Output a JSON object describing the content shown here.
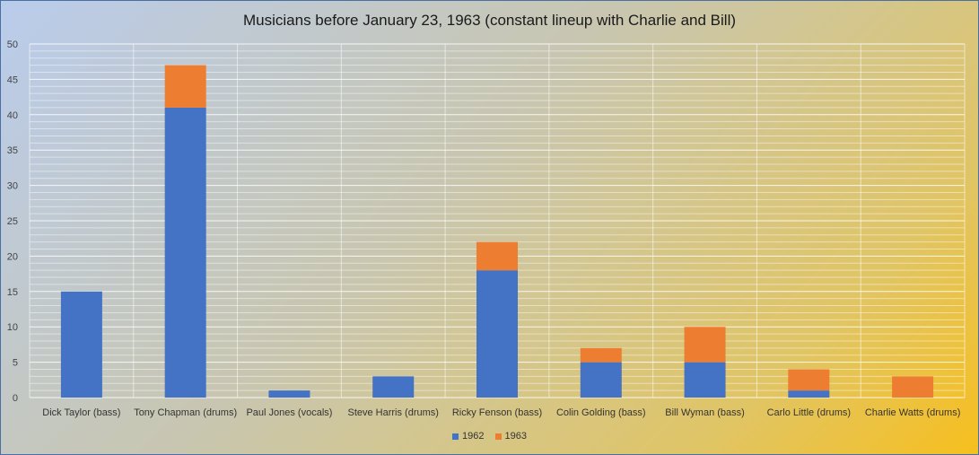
{
  "chart_data": {
    "type": "bar",
    "stacked": true,
    "title": "Musicians before January 23, 1963 (constant lineup with Charlie and Bill)",
    "categories": [
      "Dick Taylor (bass)",
      "Tony Chapman (drums)",
      "Paul Jones (vocals)",
      "Steve Harris (drums)",
      "Ricky Fenson (bass)",
      "Colin Golding (bass)",
      "Bill Wyman (bass)",
      "Carlo Little (drums)",
      "Charlie Watts (drums)"
    ],
    "series": [
      {
        "name": "1962",
        "color": "#4472c4",
        "values": [
          15,
          41,
          1,
          3,
          18,
          5,
          5,
          1,
          0
        ]
      },
      {
        "name": "1963",
        "color": "#ed7d31",
        "values": [
          0,
          6,
          0,
          0,
          4,
          2,
          5,
          3,
          3
        ]
      }
    ],
    "ylim": [
      0,
      50
    ],
    "yticks": [
      0,
      5,
      10,
      15,
      20,
      25,
      30,
      35,
      40,
      45,
      50
    ],
    "grid": true,
    "legend_position": "bottom"
  }
}
